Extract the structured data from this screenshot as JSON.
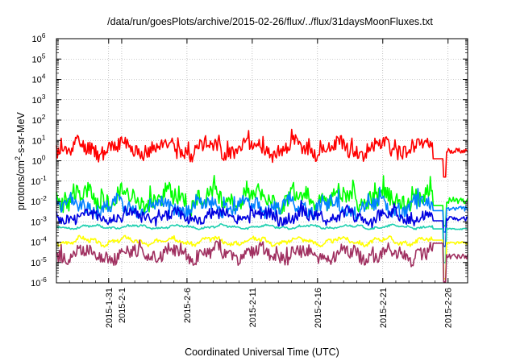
{
  "chart_data": {
    "type": "line",
    "title": "/data/run/goesPlots/archive/2015-02-26/flux/../flux/31daysMoonFluxes.txt",
    "xlabel": "Coordinated Universal Time (UTC)",
    "ylabel": {
      "pre": "protons/cm",
      "sup": "2",
      "post": "-s-sr-MeV"
    },
    "x_range": [
      "2015-01-27",
      "2015-02-27T12:00"
    ],
    "x_tick_labels": [
      "2015-1-31",
      "2015-2-1",
      "2015-2-6",
      "2015-2-11",
      "2015-2-16",
      "2015-2-21",
      "2015-2-26"
    ],
    "x_tick_days": [
      4,
      5,
      10,
      15,
      20,
      25,
      30
    ],
    "y_scale": "log",
    "y_range_exp": [
      -6,
      6
    ],
    "y_ticks_exp": [
      -6,
      -5,
      -4,
      -3,
      -2,
      -1,
      0,
      1,
      2,
      3,
      4,
      5,
      6
    ],
    "grid": true,
    "legend": "none",
    "series": [
      {
        "color": "#ff0000",
        "base": 0.6,
        "amp": 0.45,
        "plateau": 0.1,
        "drop": -0.8,
        "seed": 11,
        "spiky": true
      },
      {
        "color": "#00ff00",
        "base": -1.85,
        "amp": 0.55,
        "plateau": -2.2,
        "drop": -3.2,
        "seed": 23,
        "spiky": true
      },
      {
        "color": "#0080ff",
        "base": -2.25,
        "amp": 0.45,
        "plateau": -2.45,
        "drop": -3.5,
        "seed": 37,
        "spiky": true
      },
      {
        "color": "#0000e0",
        "base": -2.75,
        "amp": 0.35,
        "plateau": -2.95,
        "drop": -4.2,
        "seed": 41,
        "spiky": true
      },
      {
        "color": "#20d0b0",
        "base": -3.25,
        "amp": 0.12,
        "plateau": -3.35,
        "drop": -5.0,
        "seed": 53,
        "spiky": false
      },
      {
        "color": "#ffff00",
        "base": -3.95,
        "amp": 0.25,
        "plateau": -3.9,
        "drop": -5.8,
        "seed": 67,
        "spiky": false
      },
      {
        "color": "#a03060",
        "base": -4.6,
        "amp": 0.4,
        "plateau": -4.05,
        "drop": -6.0,
        "seed": 79,
        "spiky": true
      }
    ]
  }
}
